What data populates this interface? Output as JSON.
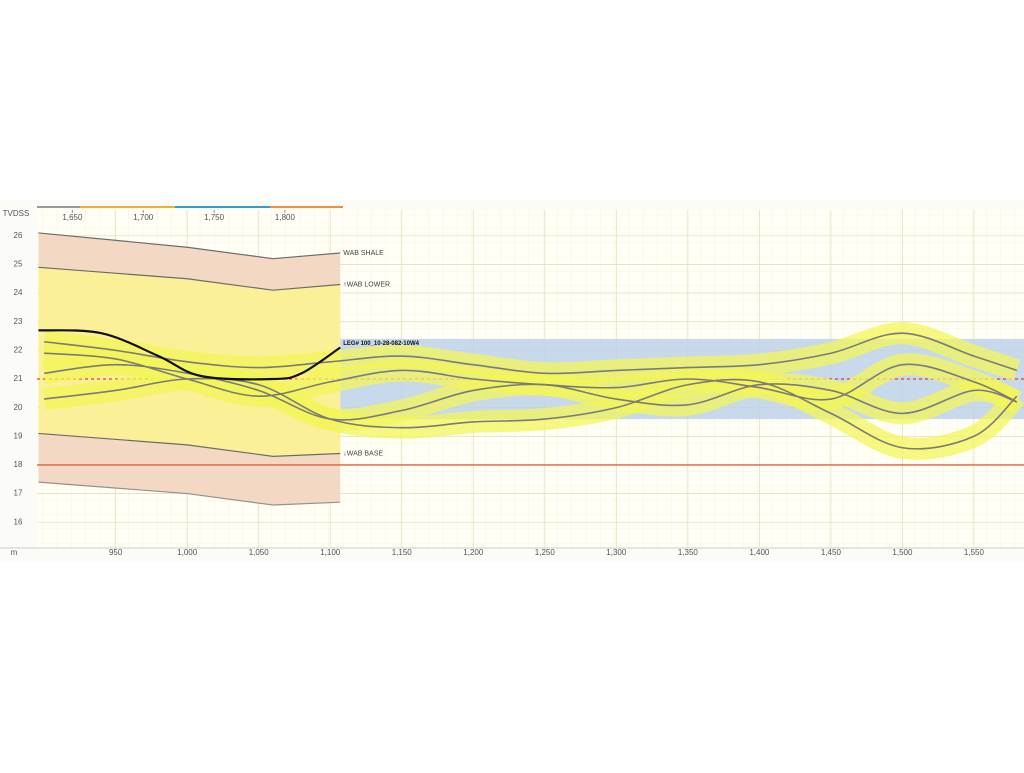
{
  "chart_data": {
    "type": "line",
    "y_label": "TVDSS",
    "x_label": "m",
    "xlim": [
      895,
      1585
    ],
    "ylim": [
      15.1,
      26.9
    ],
    "xticks": [
      950,
      {
        "value": 1000,
        "label": "1,000"
      },
      {
        "value": 1050,
        "label": "1,050"
      },
      {
        "value": 1100,
        "label": "1,100"
      },
      {
        "value": 1150,
        "label": "1,150"
      },
      {
        "value": 1200,
        "label": "1,200"
      },
      {
        "value": 1250,
        "label": "1,250"
      },
      {
        "value": 1300,
        "label": "1,300"
      },
      {
        "value": 1350,
        "label": "1,350"
      },
      {
        "value": 1400,
        "label": "1,400"
      },
      {
        "value": 1450,
        "label": "1,450"
      },
      {
        "value": 1500,
        "label": "1,500"
      },
      {
        "value": 1550,
        "label": "1,550"
      }
    ],
    "yticks": [
      16,
      17,
      18,
      19,
      20,
      21,
      22,
      23,
      24,
      25,
      26
    ],
    "top_xlim": [
      1625,
      1841
    ],
    "top_xticks": [
      {
        "value": 1650,
        "label": "1,650"
      },
      {
        "value": 1700,
        "label": "1,700"
      },
      {
        "value": 1750,
        "label": "1,750"
      },
      {
        "value": 1800,
        "label": "1,800"
      }
    ],
    "grid": true,
    "formations": {
      "x": [
        896,
        1000,
        1060,
        1107
      ],
      "lines": [
        {
          "name": "WAB SHALE",
          "color": "#6b6b6b",
          "values": [
            26.1,
            25.6,
            25.2,
            25.4
          ]
        },
        {
          "name": "↑WAB LOWER",
          "color": "#6b6b6b",
          "values": [
            24.9,
            24.5,
            24.1,
            24.3
          ]
        },
        {
          "name": "↓WAB BASE",
          "color": "#6b6b6b",
          "values": [
            19.1,
            18.7,
            18.3,
            18.4
          ]
        },
        {
          "color": "#9a8f88",
          "values": [
            17.4,
            17.0,
            16.6,
            16.7
          ]
        }
      ]
    },
    "well": {
      "name": "LEG# 100_10-28-082-10W4",
      "color": "#111111",
      "x": [
        896,
        940,
        980,
        1010,
        1060,
        1080,
        1107
      ],
      "values": [
        22.7,
        22.6,
        21.8,
        21.1,
        21.0,
        21.2,
        22.1
      ]
    },
    "target": {
      "x": [
        1107,
        1585
      ],
      "lower": 19.6,
      "upper": 22.4,
      "color": "#b9cfe8"
    },
    "reference_lines": [
      {
        "value": 18.0,
        "color": "#e0603a",
        "dashed": false
      },
      {
        "value": 21.0,
        "color": "#e04030",
        "dashed": true
      }
    ],
    "x": [
      900,
      950,
      1000,
      1050,
      1100,
      1150,
      1200,
      1250,
      1300,
      1350,
      1400,
      1450,
      1500,
      1550,
      1580
    ],
    "series": [
      {
        "color": "#7a7a7a",
        "values": [
          22.3,
          22.0,
          21.6,
          21.4,
          21.6,
          21.8,
          21.5,
          21.2,
          21.3,
          21.4,
          21.5,
          21.9,
          22.6,
          21.8,
          21.3
        ]
      },
      {
        "color": "#7a7a7a",
        "values": [
          21.2,
          21.5,
          21.2,
          20.6,
          19.6,
          19.9,
          20.6,
          20.8,
          20.3,
          20.1,
          20.8,
          20.6,
          19.8,
          20.6,
          20.2
        ]
      },
      {
        "color": "#7a7a7a",
        "values": [
          20.3,
          20.6,
          21.0,
          20.8,
          19.6,
          19.3,
          19.5,
          19.6,
          20.0,
          20.8,
          20.9,
          19.8,
          18.6,
          19.0,
          20.4
        ]
      },
      {
        "color": "#7a7a7a",
        "values": [
          21.9,
          21.7,
          21.0,
          20.4,
          20.9,
          21.3,
          21.0,
          20.8,
          20.7,
          21.0,
          20.7,
          20.3,
          21.5,
          20.9,
          20.2
        ]
      }
    ]
  }
}
